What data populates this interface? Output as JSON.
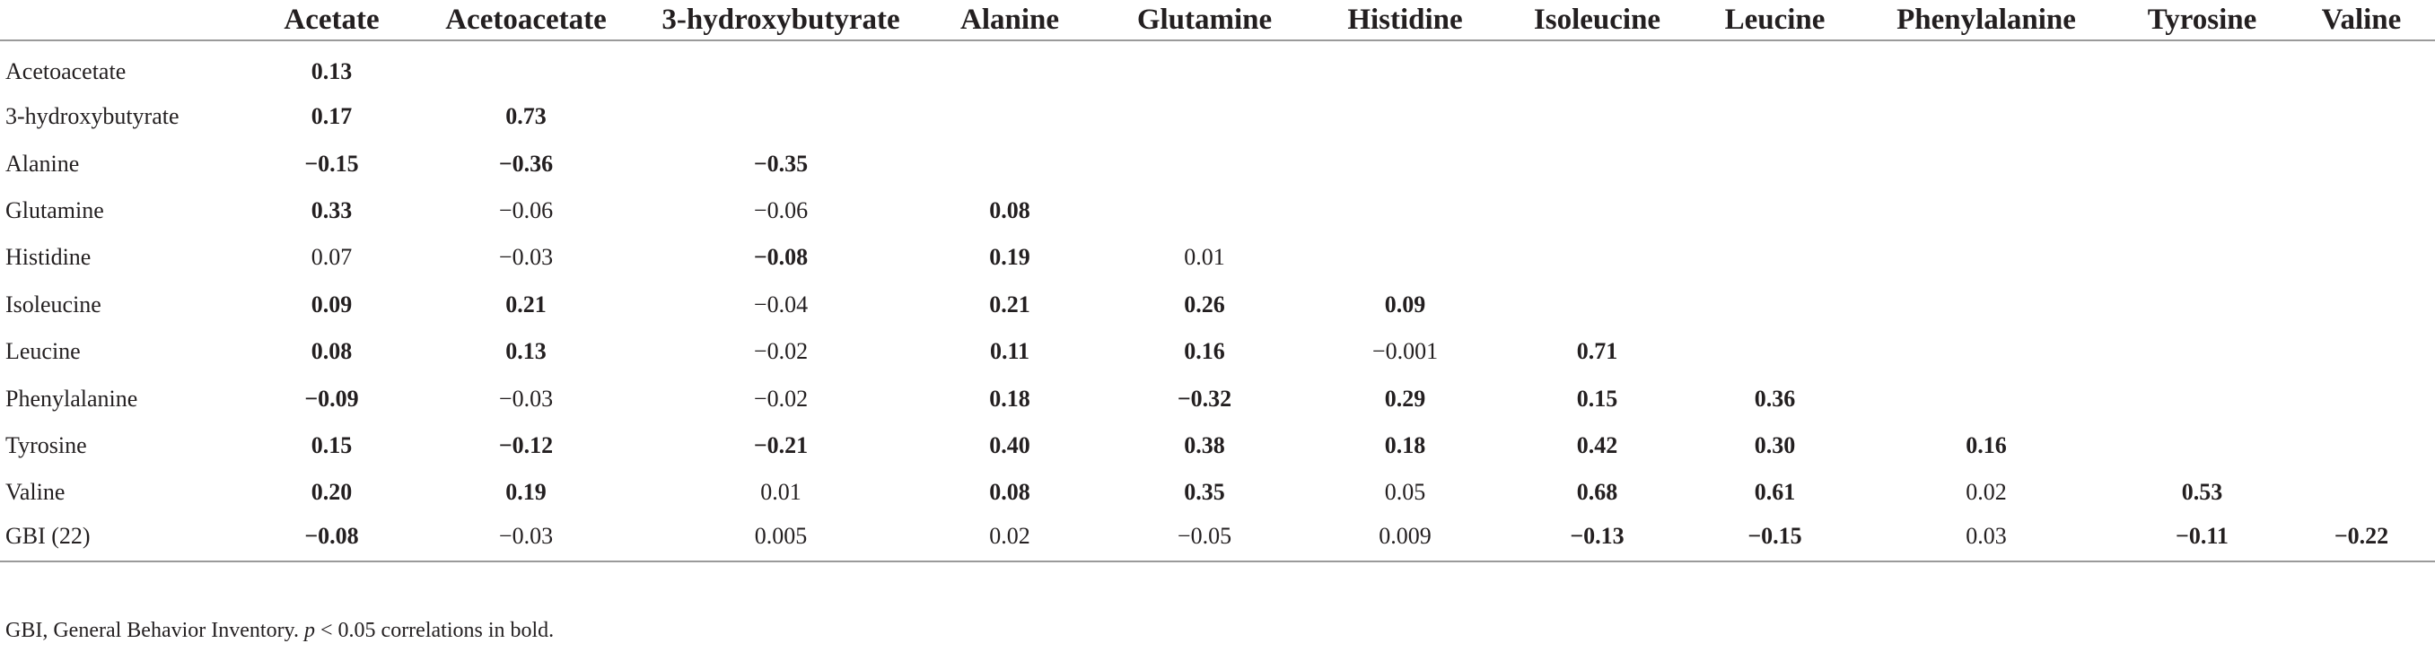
{
  "table": {
    "columns": [
      "",
      "Acetate",
      "Acetoacetate",
      "3-hydroxybutyrate",
      "Alanine",
      "Glutamine",
      "Histidine",
      "Isoleucine",
      "Leucine",
      "Phenylalanine",
      "Tyrosine",
      "Valine"
    ],
    "rows": [
      {
        "label": "Acetoacetate",
        "cells": [
          {
            "v": "0.13",
            "b": true
          }
        ]
      },
      {
        "label": "3-hydroxybutyrate",
        "cells": [
          {
            "v": "0.17",
            "b": true
          },
          {
            "v": "0.73",
            "b": true
          }
        ]
      },
      {
        "label": "Alanine",
        "cells": [
          {
            "v": "−0.15",
            "b": true
          },
          {
            "v": "−0.36",
            "b": true
          },
          {
            "v": "−0.35",
            "b": true
          }
        ]
      },
      {
        "label": "Glutamine",
        "cells": [
          {
            "v": "0.33",
            "b": true
          },
          {
            "v": "−0.06",
            "b": false
          },
          {
            "v": "−0.06",
            "b": false
          },
          {
            "v": "0.08",
            "b": true
          }
        ]
      },
      {
        "label": "Histidine",
        "cells": [
          {
            "v": "0.07",
            "b": false
          },
          {
            "v": "−0.03",
            "b": false
          },
          {
            "v": "−0.08",
            "b": true
          },
          {
            "v": "0.19",
            "b": true
          },
          {
            "v": "0.01",
            "b": false
          }
        ]
      },
      {
        "label": "Isoleucine",
        "cells": [
          {
            "v": "0.09",
            "b": true
          },
          {
            "v": "0.21",
            "b": true
          },
          {
            "v": "−0.04",
            "b": false
          },
          {
            "v": "0.21",
            "b": true
          },
          {
            "v": "0.26",
            "b": true
          },
          {
            "v": "0.09",
            "b": true
          }
        ]
      },
      {
        "label": "Leucine",
        "cells": [
          {
            "v": "0.08",
            "b": true
          },
          {
            "v": "0.13",
            "b": true
          },
          {
            "v": "−0.02",
            "b": false
          },
          {
            "v": "0.11",
            "b": true
          },
          {
            "v": "0.16",
            "b": true
          },
          {
            "v": "−0.001",
            "b": false
          },
          {
            "v": "0.71",
            "b": true
          }
        ]
      },
      {
        "label": "Phenylalanine",
        "cells": [
          {
            "v": "−0.09",
            "b": true
          },
          {
            "v": "−0.03",
            "b": false
          },
          {
            "v": "−0.02",
            "b": false
          },
          {
            "v": "0.18",
            "b": true
          },
          {
            "v": "−0.32",
            "b": true
          },
          {
            "v": "0.29",
            "b": true
          },
          {
            "v": "0.15",
            "b": true
          },
          {
            "v": "0.36",
            "b": true
          }
        ]
      },
      {
        "label": "Tyrosine",
        "cells": [
          {
            "v": "0.15",
            "b": true
          },
          {
            "v": "−0.12",
            "b": true
          },
          {
            "v": "−0.21",
            "b": true
          },
          {
            "v": "0.40",
            "b": true
          },
          {
            "v": "0.38",
            "b": true
          },
          {
            "v": "0.18",
            "b": true
          },
          {
            "v": "0.42",
            "b": true
          },
          {
            "v": "0.30",
            "b": true
          },
          {
            "v": "0.16",
            "b": true
          }
        ]
      },
      {
        "label": "Valine",
        "cells": [
          {
            "v": "0.20",
            "b": true
          },
          {
            "v": "0.19",
            "b": true
          },
          {
            "v": "0.01",
            "b": false
          },
          {
            "v": "0.08",
            "b": true
          },
          {
            "v": "0.35",
            "b": true
          },
          {
            "v": "0.05",
            "b": false
          },
          {
            "v": "0.68",
            "b": true
          },
          {
            "v": "0.61",
            "b": true
          },
          {
            "v": "0.02",
            "b": false
          },
          {
            "v": "0.53",
            "b": true
          }
        ]
      },
      {
        "label": "GBI (22)",
        "cells": [
          {
            "v": "−0.08",
            "b": true
          },
          {
            "v": "−0.03",
            "b": false
          },
          {
            "v": "0.005",
            "b": false
          },
          {
            "v": "0.02",
            "b": false
          },
          {
            "v": "−0.05",
            "b": false
          },
          {
            "v": "0.009",
            "b": false
          },
          {
            "v": "−0.13",
            "b": true
          },
          {
            "v": "−0.15",
            "b": true
          },
          {
            "v": "0.03",
            "b": false
          },
          {
            "v": "−0.11",
            "b": true
          },
          {
            "v": "−0.22",
            "b": true
          }
        ]
      }
    ]
  },
  "footnote": {
    "text_before": "GBI, General Behavior Inventory. ",
    "p_symbol": "p",
    "text_after": " < 0.05 correlations in bold."
  }
}
